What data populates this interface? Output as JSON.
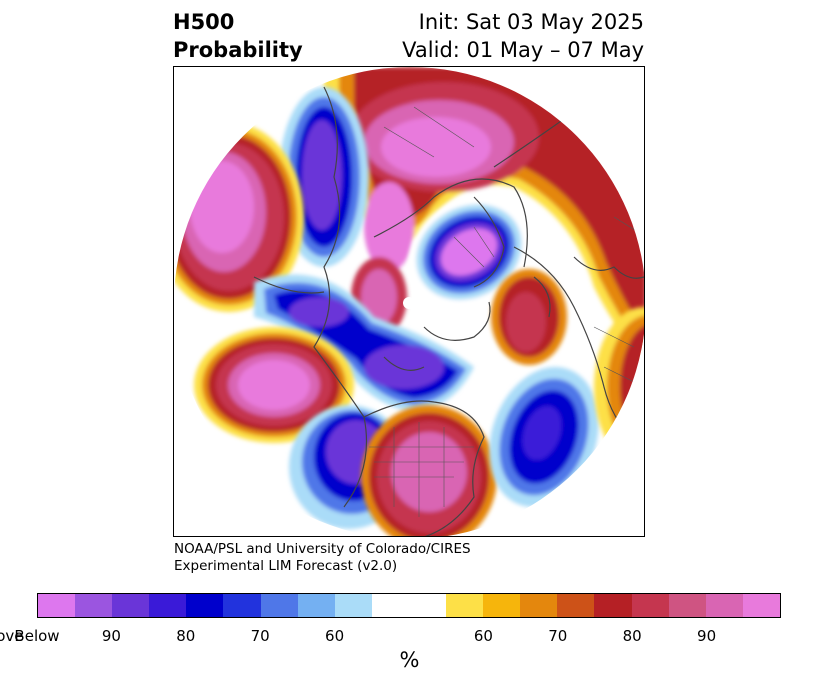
{
  "header": {
    "variable": "H500",
    "product": "Probability",
    "init": "Init: Sat 03 May 2025",
    "valid": "Valid: 01 May – 07 May"
  },
  "credit": {
    "line1": "NOAA/PSL and University of Colorado/CIRES",
    "line2": "Experimental LIM Forecast (v2.0)"
  },
  "colorbar": {
    "unit": "%",
    "tick_labels": [
      "Below",
      "90",
      "80",
      "70",
      "60",
      "60",
      "70",
      "80",
      "90",
      "Above"
    ],
    "colors": [
      "#dd77ee",
      "#9b55e0",
      "#6a35d8",
      "#3a1ad8",
      "#0000cc",
      "#2233dd",
      "#4f77e8",
      "#74b0f2",
      "#aadcf8",
      "#ffffff",
      "#fde047",
      "#f6b50c",
      "#e4870d",
      "#cd5218",
      "#b52025",
      "#c5364f",
      "#cf5482",
      "#d965b3",
      "#e87adc"
    ],
    "widths": [
      1,
      1,
      1,
      1,
      1,
      1,
      1,
      1,
      1,
      2,
      1,
      1,
      1,
      1,
      1,
      1,
      1,
      1,
      1
    ]
  }
}
